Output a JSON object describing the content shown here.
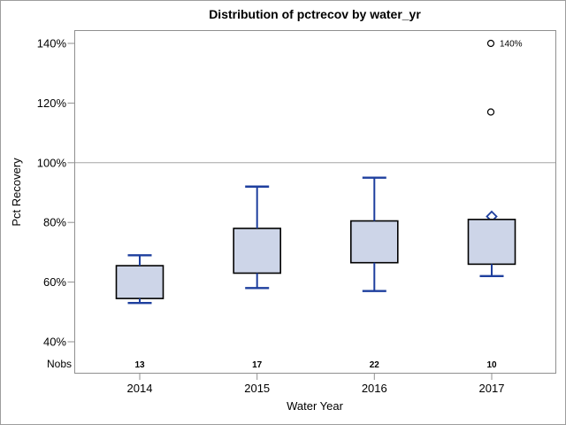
{
  "chart_data": {
    "type": "box",
    "title": "Distribution of pctrecov by water_yr",
    "xlabel": "Water Year",
    "ylabel": "Pct Recovery",
    "nobs_label": "Nobs",
    "y_axis": {
      "ticks": [
        140,
        120,
        100,
        80,
        60,
        40
      ],
      "tick_labels": [
        "140%",
        "120%",
        "100%",
        "80%",
        "60%",
        "40%"
      ],
      "range_shown": [
        40,
        140
      ],
      "reference_line": 100,
      "grid": "off"
    },
    "categories": [
      "2014",
      "2015",
      "2016",
      "2017"
    ],
    "nobs": [
      "13",
      "17",
      "22",
      "10"
    ],
    "boxes": [
      {
        "category": "2014",
        "whisker_low": 53,
        "q1": 54.5,
        "median": 61,
        "q3": 65.5,
        "whisker_high": 69,
        "mean": 61,
        "outliers": []
      },
      {
        "category": "2015",
        "whisker_low": 58,
        "q1": 63,
        "median": 70.5,
        "q3": 78,
        "whisker_high": 92,
        "mean": 72,
        "outliers": []
      },
      {
        "category": "2016",
        "whisker_low": 57,
        "q1": 66.5,
        "median": 75,
        "q3": 80.5,
        "whisker_high": 95,
        "mean": 74,
        "outliers": []
      },
      {
        "category": "2017",
        "whisker_low": 62,
        "q1": 66,
        "median": 72.5,
        "q3": 81,
        "whisker_high": 81,
        "mean": 82,
        "outliers": [
          {
            "value": 117,
            "label": ""
          },
          {
            "value": 140,
            "label": "140%"
          }
        ]
      }
    ]
  },
  "colors": {
    "box_fill": "#cdd5e8",
    "box_border": "#000000",
    "box_lines_blue": "#1e3f9e",
    "axis_frame": "#8f8f8f",
    "reference_line": "#a6a6a6",
    "outlier_stroke": "#000000",
    "text": "#000000",
    "background": "#ffffff",
    "outer_border": "#9d9d9d"
  }
}
